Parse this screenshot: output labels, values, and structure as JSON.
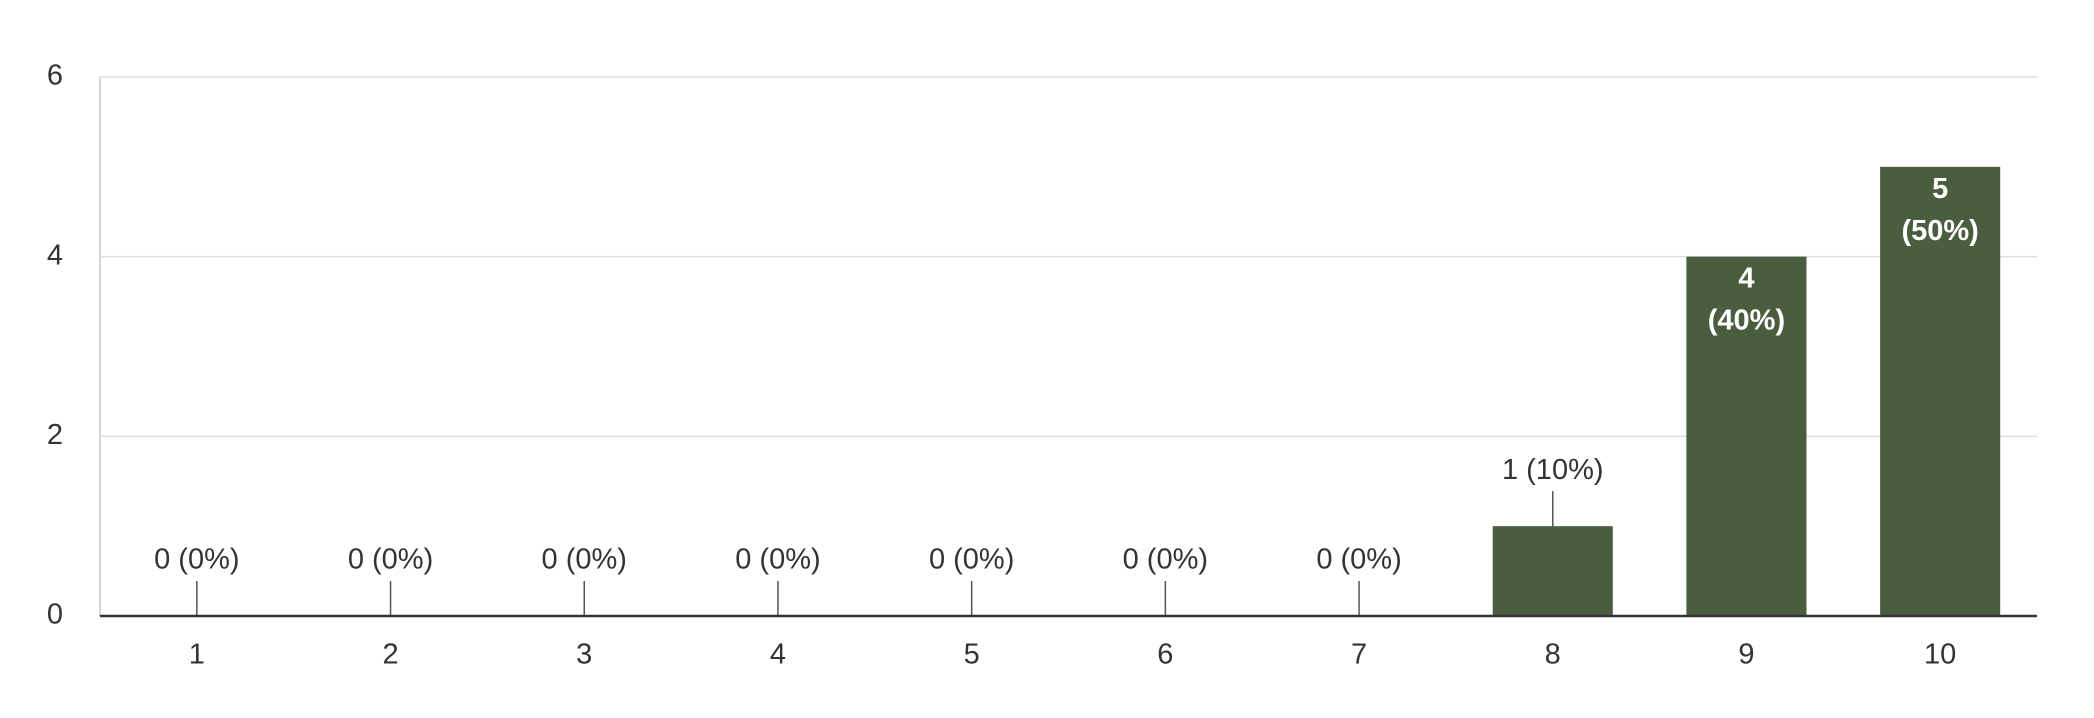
{
  "chart_data": {
    "type": "bar",
    "categories": [
      "1",
      "2",
      "3",
      "4",
      "5",
      "6",
      "7",
      "8",
      "9",
      "10"
    ],
    "values": [
      0,
      0,
      0,
      0,
      0,
      0,
      0,
      1,
      4,
      5
    ],
    "value_labels": [
      "0 (0%)",
      "0 (0%)",
      "0 (0%)",
      "0 (0%)",
      "0 (0%)",
      "0 (0%)",
      "0 (0%)",
      "1 (10%)",
      "4 (40%)",
      "5 (50%)"
    ],
    "color": "#4a5d3e",
    "ylim": [
      0,
      6
    ],
    "yticks": [
      0,
      2,
      4,
      6
    ],
    "grid": true
  }
}
